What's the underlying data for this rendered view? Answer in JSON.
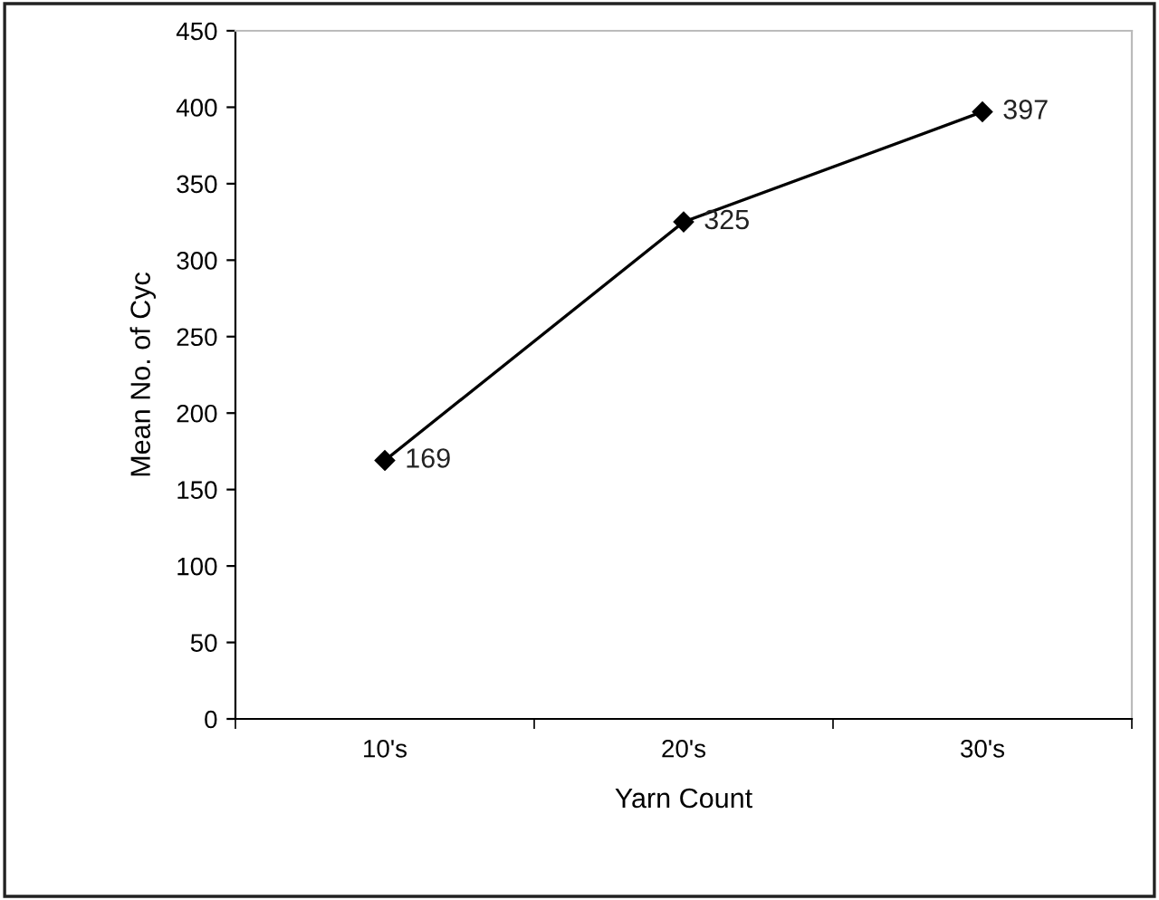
{
  "chart_data": {
    "type": "line",
    "xlabel": "Yarn Count",
    "ylabel": "Mean No. of Cyc",
    "categories": [
      "10's",
      "20's",
      "30's"
    ],
    "series": [
      {
        "color": "#000000",
        "values": [
          169,
          325,
          397
        ]
      }
    ],
    "ylim": [
      0,
      450
    ],
    "yticks": [
      0,
      50,
      100,
      150,
      200,
      250,
      300,
      350,
      400,
      450
    ],
    "marker": "diamond",
    "line_style": "solid",
    "data_labels": true,
    "grid": false,
    "legend": false
  }
}
